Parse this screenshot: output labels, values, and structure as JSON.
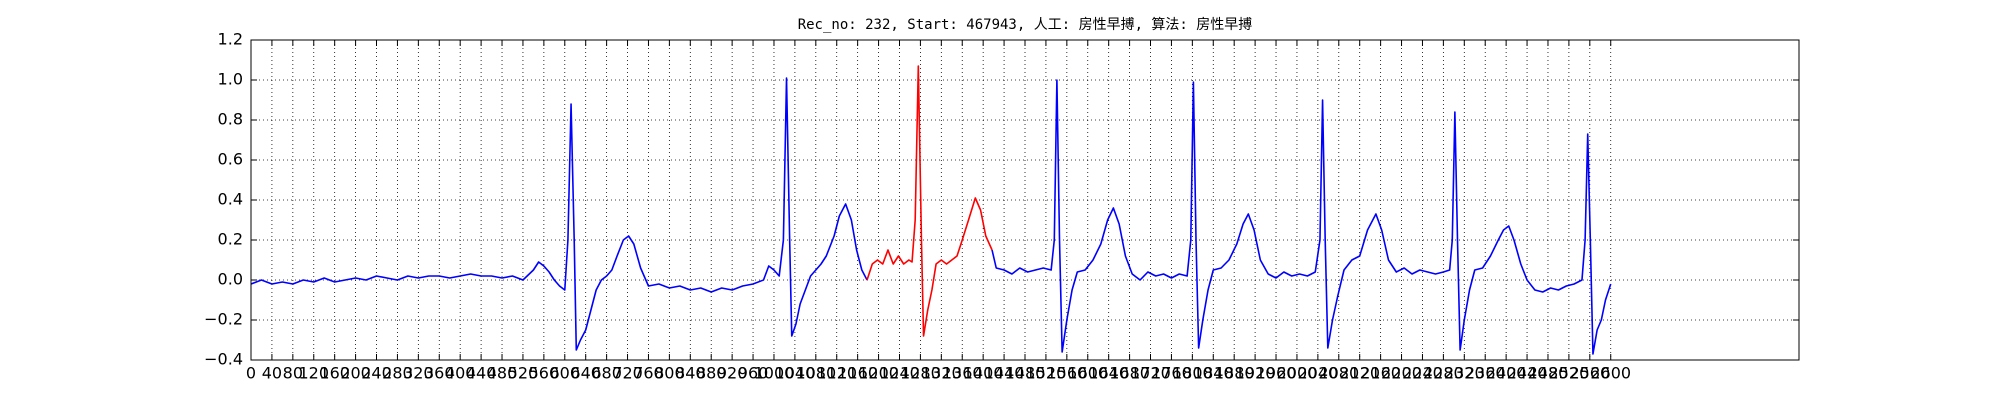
{
  "chart_data": {
    "type": "line",
    "title": "Rec_no: 232, Start: 467943, 人工: 房性早搏, 算法: 房性早搏",
    "xlim": [
      0,
      2960
    ],
    "xticks": [
      0,
      40,
      80,
      120,
      160,
      200,
      240,
      280,
      320,
      360,
      400,
      440,
      480,
      520,
      560,
      600,
      640,
      680,
      720,
      760,
      800,
      840,
      880,
      920,
      960,
      1000,
      1040,
      1080,
      1120,
      1160,
      1200,
      1240,
      1280,
      1320,
      1360,
      1400,
      1440,
      1480,
      1520,
      1560,
      1600,
      1640,
      1680,
      1720,
      1760,
      1800,
      1840,
      1880,
      1920,
      1960,
      2000,
      2040,
      2080,
      2120,
      2160,
      2200,
      2240,
      2280,
      2320,
      2360,
      2400,
      2440,
      2480,
      2520,
      2560,
      2600
    ],
    "ylim": [
      -0.4,
      1.2
    ],
    "yticks": [
      {
        "value": -0.4,
        "label": "−0.4"
      },
      {
        "value": -0.2,
        "label": "−0.2"
      },
      {
        "value": 0,
        "label": "0.0"
      },
      0.2,
      0.4,
      0.6,
      0.8,
      {
        "value": 1,
        "label": "1.0"
      },
      1.2
    ],
    "grid": true,
    "series": [
      {
        "color": "#0000ff",
        "x": [
          0,
          20,
          40,
          60,
          80,
          100,
          120,
          140,
          160,
          180,
          200,
          220,
          240,
          260,
          280,
          300,
          320,
          340,
          360,
          380,
          400,
          420,
          440,
          460,
          480,
          500,
          520,
          540,
          550,
          560,
          570,
          580,
          590,
          600,
          606,
          612,
          618,
          622,
          630,
          640,
          650,
          660,
          670,
          680,
          690,
          700,
          712,
          722,
          732,
          745,
          760,
          780,
          800,
          820,
          840,
          860,
          880,
          900,
          920,
          940,
          960,
          980,
          990,
          1000,
          1010,
          1018,
          1024,
          1030,
          1034,
          1042,
          1050,
          1060,
          1070,
          1080,
          1090,
          1100,
          1115,
          1125,
          1137,
          1148,
          1158,
          1168,
          1178,
          1300,
          1417,
          1425,
          1440,
          1455,
          1470,
          1485,
          1500,
          1515,
          1530,
          1536,
          1541,
          1546,
          1551,
          1560,
          1570,
          1580,
          1595,
          1610,
          1625,
          1638,
          1649,
          1660,
          1672,
          1685,
          1700,
          1715,
          1730,
          1745,
          1760,
          1775,
          1790,
          1797,
          1802,
          1807,
          1812,
          1820,
          1830,
          1840,
          1855,
          1870,
          1885,
          1897,
          1907,
          1918,
          1930,
          1945,
          1960,
          1975,
          1990,
          2005,
          2020,
          2035,
          2044,
          2049,
          2054,
          2059,
          2068,
          2078,
          2090,
          2105,
          2120,
          2135,
          2151,
          2162,
          2175,
          2190,
          2205,
          2220,
          2235,
          2250,
          2265,
          2280,
          2292,
          2297,
          2302,
          2307,
          2312,
          2320,
          2330,
          2340,
          2355,
          2370,
          2385,
          2395,
          2405,
          2415,
          2428,
          2440,
          2455,
          2470,
          2485,
          2500,
          2515,
          2530,
          2545,
          2551,
          2556,
          2561,
          2566,
          2574,
          2582,
          2590,
          2600
        ],
        "values": [
          -0.02,
          0,
          -0.02,
          -0.01,
          -0.02,
          0,
          -0.01,
          0.01,
          -0.01,
          0,
          0.01,
          0,
          0.02,
          0.01,
          0,
          0.02,
          0.01,
          0.02,
          0.02,
          0.01,
          0.02,
          0.03,
          0.02,
          0.02,
          0.01,
          0.02,
          0,
          0.05,
          0.09,
          0.07,
          0.04,
          0,
          -0.03,
          -0.05,
          0.2,
          0.88,
          0.2,
          -0.35,
          -0.3,
          -0.25,
          -0.15,
          -0.05,
          0,
          0.02,
          0.05,
          0.12,
          0.2,
          0.22,
          0.18,
          0.06,
          -0.03,
          -0.02,
          -0.04,
          -0.03,
          -0.05,
          -0.04,
          -0.06,
          -0.04,
          -0.05,
          -0.03,
          -0.02,
          0,
          0.07,
          0.05,
          0.02,
          0.2,
          1.01,
          0.2,
          -0.28,
          -0.22,
          -0.12,
          -0.05,
          0.02,
          0.05,
          0.08,
          0.12,
          0.22,
          0.32,
          0.38,
          0.3,
          0.15,
          0.05,
          0,
          null,
          0.15,
          0.06,
          0.05,
          0.03,
          0.06,
          0.04,
          0.05,
          0.06,
          0.05,
          0.2,
          1,
          0.2,
          -0.36,
          -0.2,
          -0.05,
          0.04,
          0.05,
          0.1,
          0.18,
          0.3,
          0.36,
          0.28,
          0.12,
          0.03,
          0,
          0.04,
          0.02,
          0.03,
          0.01,
          0.03,
          0.02,
          0.2,
          0.99,
          0.2,
          -0.34,
          -0.2,
          -0.05,
          0.05,
          0.06,
          0.1,
          0.18,
          0.28,
          0.33,
          0.25,
          0.1,
          0.03,
          0.01,
          0.04,
          0.02,
          0.03,
          0.02,
          0.04,
          0.2,
          0.9,
          0.2,
          -0.34,
          -0.2,
          -0.08,
          0.05,
          0.1,
          0.12,
          0.25,
          0.33,
          0.25,
          0.1,
          0.04,
          0.06,
          0.03,
          0.05,
          0.04,
          0.03,
          0.04,
          0.05,
          0.2,
          0.84,
          0.2,
          -0.35,
          -0.2,
          -0.05,
          0.05,
          0.06,
          0.12,
          0.2,
          0.25,
          0.27,
          0.2,
          0.08,
          0,
          -0.05,
          -0.06,
          -0.04,
          -0.05,
          -0.03,
          -0.02,
          0,
          0.2,
          0.73,
          0.2,
          -0.37,
          -0.25,
          -0.2,
          -0.1,
          -0.02
        ]
      },
      {
        "color": "#ff0000",
        "x": [
          1178,
          1188,
          1198,
          1208,
          1218,
          1228,
          1238,
          1248,
          1258,
          1264,
          1270,
          1276,
          1282,
          1286,
          1294,
          1302,
          1310,
          1320,
          1330,
          1340,
          1350,
          1360,
          1372,
          1385,
          1395,
          1405,
          1417
        ],
        "values": [
          0,
          0.08,
          0.1,
          0.08,
          0.15,
          0.08,
          0.12,
          0.08,
          0.1,
          0.09,
          0.3,
          1.07,
          0.2,
          -0.28,
          -0.15,
          -0.05,
          0.08,
          0.1,
          0.08,
          0.1,
          0.12,
          0.2,
          0.3,
          0.41,
          0.35,
          0.22,
          0.15
        ]
      }
    ]
  }
}
